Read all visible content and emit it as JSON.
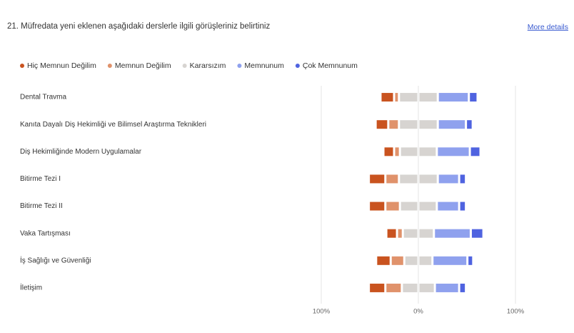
{
  "chart_data": {
    "type": "diverging_bar",
    "title": "21. Müfredata yeni eklenen aşağıdaki derslerle ilgili görüşleriniz belirtiniz",
    "link": "More details",
    "categories": [
      "Dental Travma",
      "Kanıta Dayalı Diş Hekimliği ve Bilimsel Araştırma Teknikleri",
      "Diş Hekimliğinde Modern Uygulamalar",
      "Bitirme Tezi I",
      "Bitirme Tezi II",
      "Vaka Tartışması",
      "İş Sağlığı ve Güvenliği",
      "İletişim"
    ],
    "series": [
      {
        "name": "Hiç Memnun Değilim",
        "color": "#c9531f",
        "values": [
          14,
          13,
          11,
          17,
          17,
          11,
          15,
          17
        ]
      },
      {
        "name": "Memnun Değilim",
        "color": "#e0926b",
        "values": [
          5,
          11,
          6,
          14,
          15,
          6,
          14,
          17
        ]
      },
      {
        "name": "Kararsızım",
        "color": "#d7d4d1",
        "values": [
          40,
          40,
          38,
          40,
          38,
          32,
          29,
          34
        ]
      },
      {
        "name": "Memnunum",
        "color": "#8fa1ee",
        "values": [
          32,
          29,
          34,
          22,
          23,
          38,
          36,
          25
        ]
      },
      {
        "name": "Çok Memnunum",
        "color": "#4f63e0",
        "values": [
          9,
          7,
          11,
          7,
          7,
          13,
          6,
          7
        ]
      }
    ],
    "xlim": [
      -100,
      100
    ],
    "xticks": [
      {
        "value": -100,
        "label": "100%"
      },
      {
        "value": 0,
        "label": "0%"
      },
      {
        "value": 100,
        "label": "100%"
      }
    ]
  }
}
